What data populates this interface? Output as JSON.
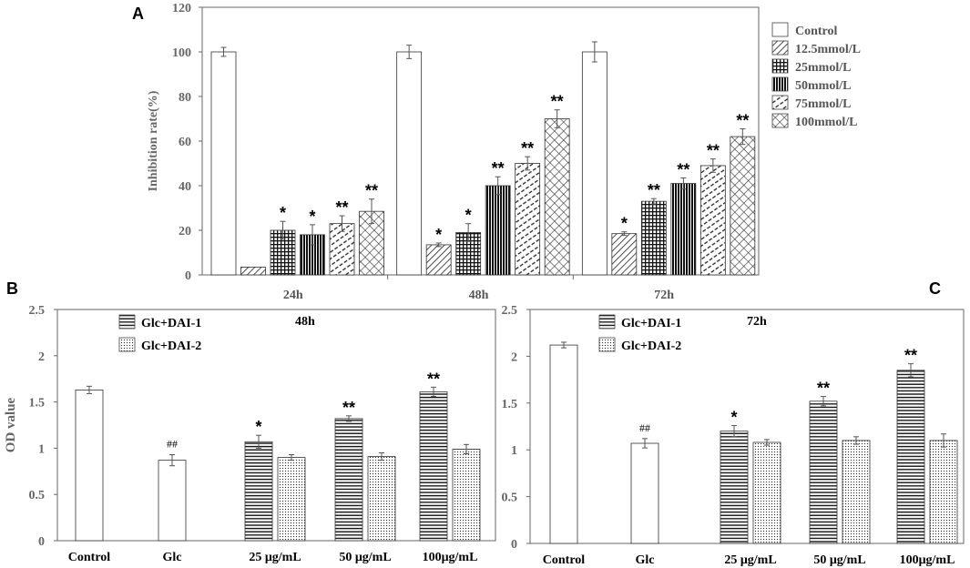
{
  "panel_labels": {
    "a": "A",
    "b": "B",
    "c": "C"
  },
  "chart_data": [
    {
      "id": "A",
      "type": "bar",
      "title": "",
      "xlabel": "",
      "ylabel": "Inhibition rate(%)",
      "ylim": [
        0,
        120
      ],
      "yticks": [
        0,
        20,
        40,
        60,
        80,
        100,
        120
      ],
      "categories": [
        "24h",
        "48h",
        "72h"
      ],
      "legend_position": "right",
      "series": [
        {
          "name": "Control",
          "pattern": "blank",
          "values": [
            100,
            100,
            100
          ],
          "errors": [
            2,
            3,
            4.5
          ],
          "sig": [
            "",
            "",
            ""
          ]
        },
        {
          "name": "12.5mmol/L",
          "pattern": "diag-right",
          "values": [
            3.5,
            13.5,
            18.5
          ],
          "errors": [
            0,
            0.8,
            0.8
          ],
          "sig": [
            "",
            "*",
            "*"
          ]
        },
        {
          "name": "25mmol/L",
          "pattern": "grid",
          "values": [
            20,
            19,
            33
          ],
          "errors": [
            4,
            4,
            1.2
          ],
          "sig": [
            "*",
            "*",
            "**"
          ]
        },
        {
          "name": "50mmol/L",
          "pattern": "vert-dense",
          "values": [
            18,
            40,
            41
          ],
          "errors": [
            4.5,
            4,
            2.5
          ],
          "sig": [
            "*",
            "**",
            "**"
          ]
        },
        {
          "name": "75mmol/L",
          "pattern": "dashed-diag",
          "values": [
            23,
            50,
            49
          ],
          "errors": [
            3.5,
            3,
            3
          ],
          "sig": [
            "**",
            "**",
            "**"
          ]
        },
        {
          "name": "100mmol/L",
          "pattern": "crosshatch",
          "values": [
            28.5,
            70,
            62
          ],
          "errors": [
            5.5,
            4,
            3.5
          ],
          "sig": [
            "**",
            "**",
            "**"
          ]
        }
      ]
    },
    {
      "id": "B",
      "type": "bar",
      "title": "48h",
      "xlabel": "",
      "ylabel": "OD value",
      "ylim": [
        0,
        2.5
      ],
      "yticks": [
        "0",
        "0.5",
        "1",
        "1.5",
        "2",
        "2.5"
      ],
      "categories": [
        "Control",
        "Glc",
        "25 μg/mL",
        "50 μg/mL",
        "100μg/mL"
      ],
      "legend_position": "top-center",
      "legend": [
        {
          "name": "Glc+DAI-1",
          "pattern": "horiz"
        },
        {
          "name": "Glc+DAI-2",
          "pattern": "dots"
        }
      ],
      "bars": [
        {
          "category": "Control",
          "pattern": "blank",
          "value": 1.63,
          "error": 0.04,
          "sig": ""
        },
        {
          "category": "Glc",
          "pattern": "blank",
          "value": 0.87,
          "error": 0.06,
          "sig": "##"
        },
        {
          "category": "25 μg/mL",
          "pattern": "horiz",
          "value": 1.07,
          "error": 0.07,
          "sig": "*"
        },
        {
          "category": "25 μg/mL",
          "pattern": "dots",
          "value": 0.9,
          "error": 0.03,
          "sig": ""
        },
        {
          "category": "50 μg/mL",
          "pattern": "horiz",
          "value": 1.32,
          "error": 0.03,
          "sig": "**"
        },
        {
          "category": "50 μg/mL",
          "pattern": "dots",
          "value": 0.91,
          "error": 0.04,
          "sig": ""
        },
        {
          "category": "100μg/mL",
          "pattern": "horiz",
          "value": 1.61,
          "error": 0.05,
          "sig": "**"
        },
        {
          "category": "100μg/mL",
          "pattern": "dots",
          "value": 0.99,
          "error": 0.05,
          "sig": ""
        }
      ]
    },
    {
      "id": "C",
      "type": "bar",
      "title": "72h",
      "xlabel": "",
      "ylabel": "",
      "ylim": [
        0,
        2.5
      ],
      "yticks": [
        "0",
        "0.5",
        "1",
        "1.5",
        "2",
        "2.5"
      ],
      "categories": [
        "Control",
        "Glc",
        "25 μg/mL",
        "50 μg/mL",
        "100μg/mL"
      ],
      "legend_position": "top-center",
      "legend": [
        {
          "name": "Glc+DAI-1",
          "pattern": "horiz"
        },
        {
          "name": "Glc+DAI-2",
          "pattern": "dots"
        }
      ],
      "bars": [
        {
          "category": "Control",
          "pattern": "blank",
          "value": 2.12,
          "error": 0.03,
          "sig": ""
        },
        {
          "category": "Glc",
          "pattern": "blank",
          "value": 1.07,
          "error": 0.05,
          "sig": "##"
        },
        {
          "category": "25 μg/mL",
          "pattern": "horiz",
          "value": 1.2,
          "error": 0.06,
          "sig": "*"
        },
        {
          "category": "25 μg/mL",
          "pattern": "dots",
          "value": 1.08,
          "error": 0.03,
          "sig": ""
        },
        {
          "category": "50 μg/mL",
          "pattern": "horiz",
          "value": 1.52,
          "error": 0.05,
          "sig": "**"
        },
        {
          "category": "50 μg/mL",
          "pattern": "dots",
          "value": 1.1,
          "error": 0.04,
          "sig": ""
        },
        {
          "category": "100μg/mL",
          "pattern": "horiz",
          "value": 1.85,
          "error": 0.07,
          "sig": "**"
        },
        {
          "category": "100μg/mL",
          "pattern": "dots",
          "value": 1.1,
          "error": 0.07,
          "sig": ""
        }
      ]
    }
  ]
}
